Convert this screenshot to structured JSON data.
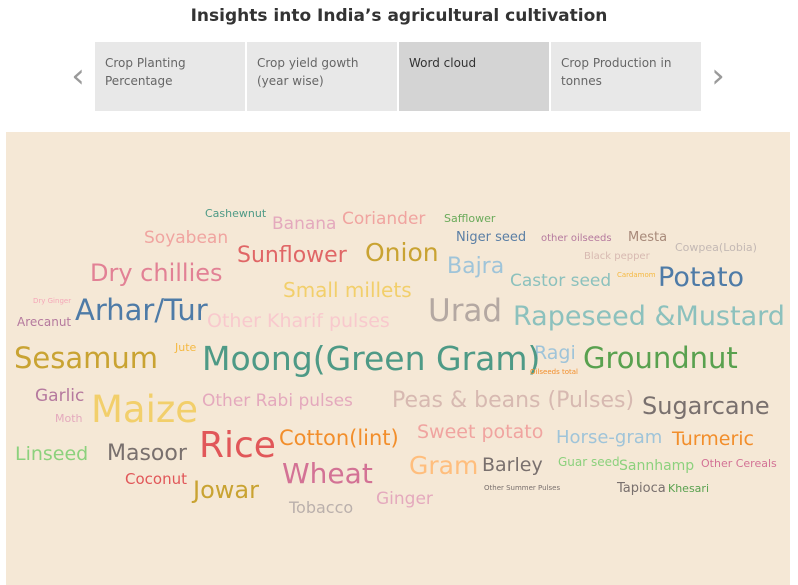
{
  "title": "Insights into India’s agricultural cultivation",
  "nav": {
    "prev_icon": "‹",
    "next_icon": "›"
  },
  "tabs": [
    {
      "label": "Crop Planting Percentage",
      "active": false
    },
    {
      "label": "Crop yield gowth (year wise)",
      "active": false
    },
    {
      "label": "Word cloud",
      "active": true
    },
    {
      "label": "Crop Production in tonnes",
      "active": false
    }
  ],
  "colors": {
    "cloud_background": "#f5e8d6",
    "active_tab": "#d4d4d4",
    "tab": "#e8e8e8"
  },
  "words": [
    {
      "text": "Cashewnut",
      "color": "#4e9a86"
    },
    {
      "text": "Banana",
      "color": "#e4a9bd"
    },
    {
      "text": "Coriander",
      "color": "#f0a4a0"
    },
    {
      "text": "Safflower",
      "color": "#6aaa5a"
    },
    {
      "text": "Soyabean",
      "color": "#f0a4a0"
    },
    {
      "text": "Niger seed",
      "color": "#5b7fa5"
    },
    {
      "text": "other oilseeds",
      "color": "#b5799e"
    },
    {
      "text": "Mesta",
      "color": "#a88a7a"
    },
    {
      "text": "Cowpea(Lobia)",
      "color": "#c3b8b4"
    },
    {
      "text": "Sunflower",
      "color": "#e06666"
    },
    {
      "text": "Onion",
      "color": "#c9a332"
    },
    {
      "text": "Black pepper",
      "color": "#d7b9b1"
    },
    {
      "text": "Dry chillies",
      "color": "#e28195"
    },
    {
      "text": "Bajra",
      "color": "#9fc4d9"
    },
    {
      "text": "Castor seed",
      "color": "#8cc1bd"
    },
    {
      "text": "Cardamom",
      "color": "#f5b942"
    },
    {
      "text": "Potato",
      "color": "#4e7ba7"
    },
    {
      "text": "Small millets",
      "color": "#f2cf6b"
    },
    {
      "text": "Dry Ginger",
      "color": "#f5a6b8"
    },
    {
      "text": "Arhar/Tur",
      "color": "#4e7ba7"
    },
    {
      "text": "Urad",
      "color": "#b4a8a2"
    },
    {
      "text": "Rapeseed &Mustard",
      "color": "#8cc1bd"
    },
    {
      "text": "Arecanut",
      "color": "#b5799e"
    },
    {
      "text": "Other Kharif pulses",
      "color": "#f8c9cd"
    },
    {
      "text": "Jute",
      "color": "#f5b942"
    },
    {
      "text": "Ragi",
      "color": "#9fc4d9"
    },
    {
      "text": "Sesamum",
      "color": "#c9a332"
    },
    {
      "text": "Moong(Green Gram)",
      "color": "#4e9a86"
    },
    {
      "text": "Groundnut",
      "color": "#59a14f"
    },
    {
      "text": "Oilseeds total",
      "color": "#f28e2b"
    },
    {
      "text": "Garlic",
      "color": "#b5799e"
    },
    {
      "text": "Moth",
      "color": "#e4a9bd"
    },
    {
      "text": "Maize",
      "color": "#f2cf6b"
    },
    {
      "text": "Other Rabi pulses",
      "color": "#e4a9bd"
    },
    {
      "text": "Peas & beans (Pulses)",
      "color": "#d7b9b1"
    },
    {
      "text": "Sugarcane",
      "color": "#79706e"
    },
    {
      "text": "Linseed",
      "color": "#8cd17d"
    },
    {
      "text": "Masoor",
      "color": "#79706e"
    },
    {
      "text": "Rice",
      "color": "#e15759"
    },
    {
      "text": "Cotton(lint)",
      "color": "#f28e2b"
    },
    {
      "text": "Sweet potato",
      "color": "#f0a4a0"
    },
    {
      "text": "Horse-gram",
      "color": "#9fc4d9"
    },
    {
      "text": "Turmeric",
      "color": "#f28e2b"
    },
    {
      "text": "Coconut",
      "color": "#e15759"
    },
    {
      "text": "Wheat",
      "color": "#d37295"
    },
    {
      "text": "Gram",
      "color": "#ffbe7d"
    },
    {
      "text": "Barley",
      "color": "#79706e"
    },
    {
      "text": "Guar seed",
      "color": "#8cd17d"
    },
    {
      "text": "Sannhamp",
      "color": "#8cd17d"
    },
    {
      "text": "Other Cereals",
      "color": "#d37295"
    },
    {
      "text": "Jowar",
      "color": "#c9a332"
    },
    {
      "text": "Ginger",
      "color": "#e4a9bd"
    },
    {
      "text": "Other Summer Pulses",
      "color": "#79706e"
    },
    {
      "text": "Tapioca",
      "color": "#79706e"
    },
    {
      "text": "Khesari",
      "color": "#59a14f"
    },
    {
      "text": "Tobacco",
      "color": "#bab0ac"
    }
  ]
}
